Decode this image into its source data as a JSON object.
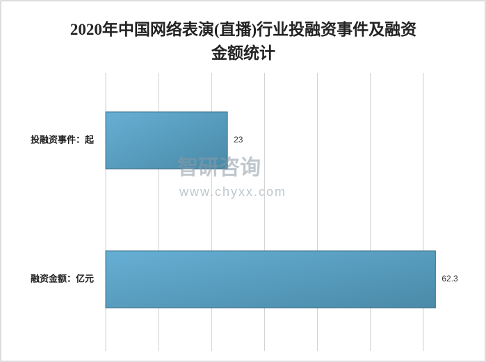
{
  "chart_data": {
    "type": "hbar",
    "title": "2020年中国网络表演(直播)行业投融资事件及融资金额统计",
    "categories": [
      "投融资事件：起",
      "融资金额：亿元"
    ],
    "values": [
      23,
      62.3
    ],
    "color": "#5aa2c6",
    "xlim": [
      0,
      70
    ],
    "xticks": [
      0,
      10,
      20,
      30,
      40,
      50,
      60
    ],
    "grid": true,
    "watermark": {
      "brand": "智研咨询",
      "url": "www.chyxx.com"
    }
  }
}
